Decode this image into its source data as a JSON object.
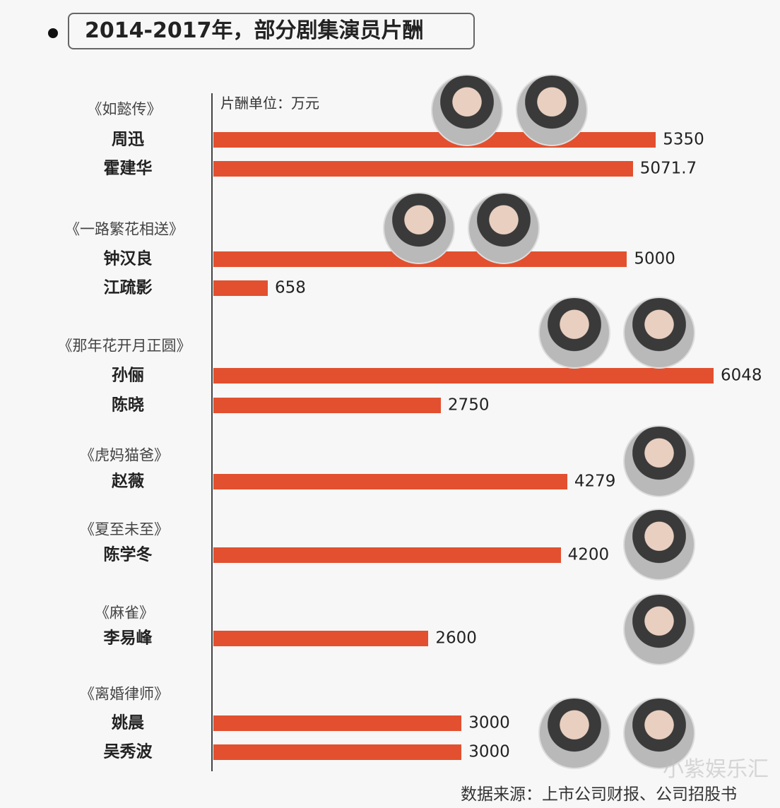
{
  "title": "2014-2017年，部分剧集演员片酬",
  "source": "数据来源：上市公司财报、公司招股书",
  "watermark": "小紫娱乐汇",
  "colors": {
    "bar": "#e2502f",
    "axis": "#444444"
  },
  "chart_data": {
    "type": "bar",
    "orientation": "horizontal",
    "title": "2014-2017年，部分剧集演员片酬",
    "unit_label": "片酬单位：万元",
    "grid": false,
    "groups": [
      {
        "drama": "《如懿传》",
        "actors": [
          {
            "name": "周迅",
            "value": 5350,
            "label": "5350"
          },
          {
            "name": "霍建华",
            "value": 5071.7,
            "label": "5071.7"
          }
        ]
      },
      {
        "drama": "《一路繁花相送》",
        "actors": [
          {
            "name": "钟汉良",
            "value": 5000,
            "label": "5000"
          },
          {
            "name": "江疏影",
            "value": 658,
            "label": "658"
          }
        ]
      },
      {
        "drama": "《那年花开月正圆》",
        "actors": [
          {
            "name": "孙俪",
            "value": 6048,
            "label": "6048"
          },
          {
            "name": "陈晓",
            "value": 2750,
            "label": "2750"
          }
        ]
      },
      {
        "drama": "《虎妈猫爸》",
        "actors": [
          {
            "name": "赵薇",
            "value": 4279,
            "label": "4279"
          }
        ]
      },
      {
        "drama": "《夏至未至》",
        "actors": [
          {
            "name": "陈学冬",
            "value": 4200,
            "label": "4200"
          }
        ]
      },
      {
        "drama": "《麻雀》",
        "actors": [
          {
            "name": "李易峰",
            "value": 2600,
            "label": "2600"
          }
        ]
      },
      {
        "drama": "《离婚律师》",
        "actors": [
          {
            "name": "姚晨",
            "value": 3000,
            "label": "3000"
          },
          {
            "name": "吴秀波",
            "value": 3000,
            "label": "3000"
          }
        ]
      }
    ]
  }
}
